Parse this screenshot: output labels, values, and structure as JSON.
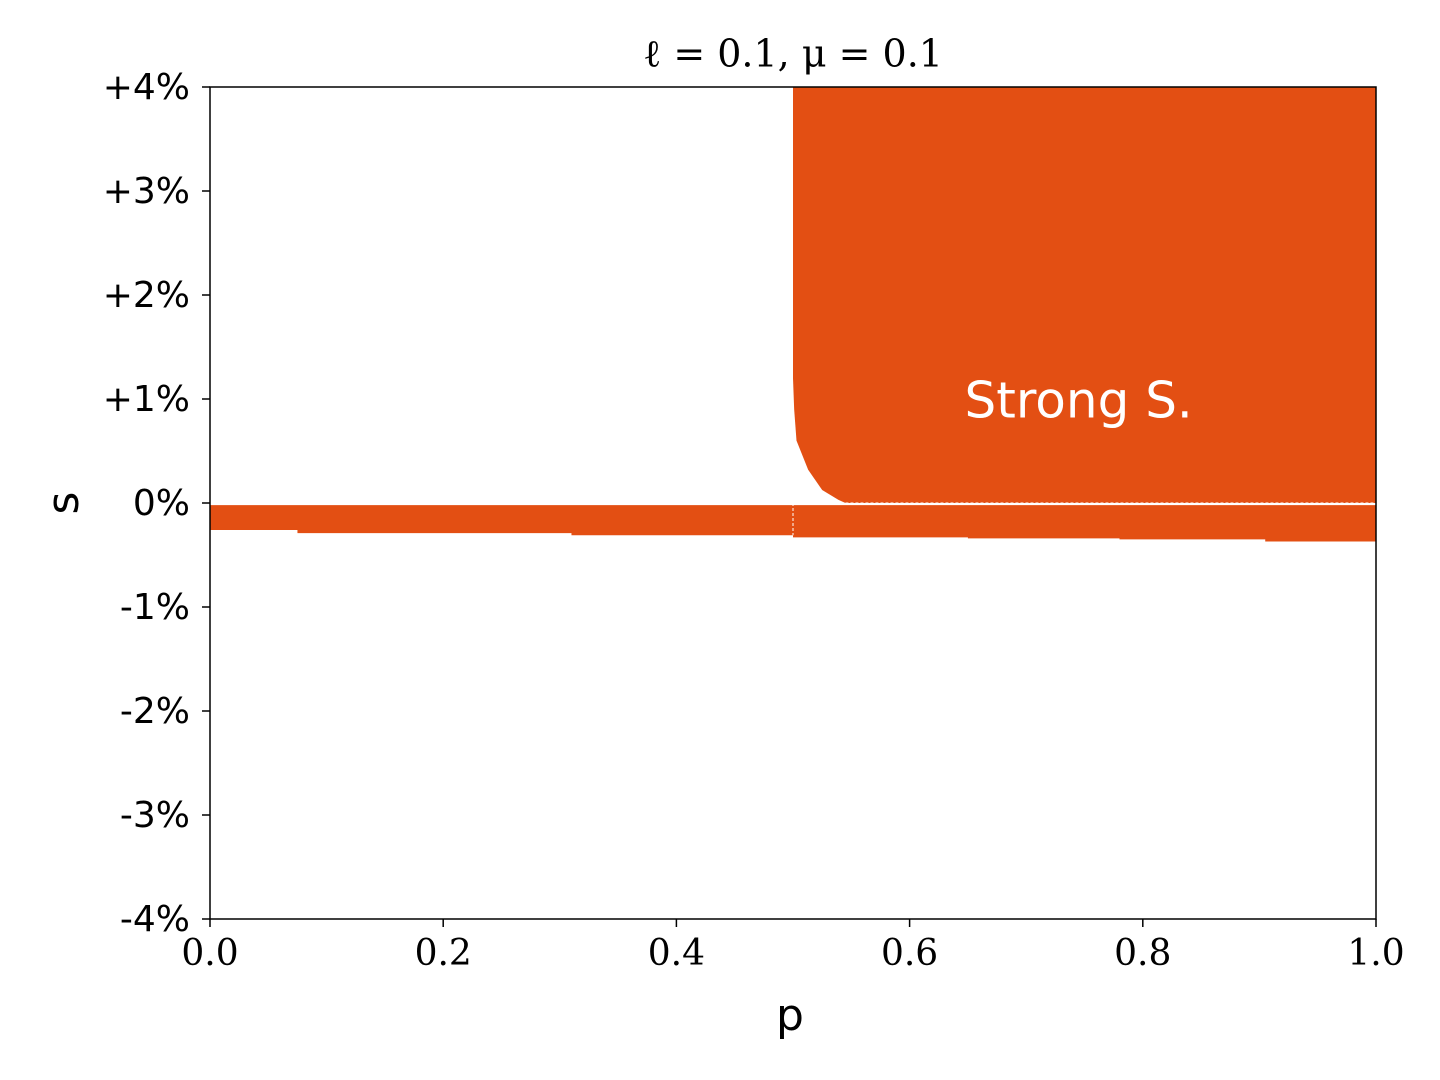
{
  "chart_data": {
    "type": "region",
    "title": "ℓ = 0.1, μ = 0.1",
    "xlabel": "p",
    "ylabel": "s",
    "xlim": [
      0,
      1
    ],
    "ylim": [
      -4,
      4
    ],
    "xticks": [
      {
        "value": 0,
        "label": "0.0"
      },
      {
        "value": 0.2,
        "label": "0.2"
      },
      {
        "value": 0.4,
        "label": "0.4"
      },
      {
        "value": 0.6,
        "label": "0.6"
      },
      {
        "value": 0.8,
        "label": "0.8"
      },
      {
        "value": 1,
        "label": "1.0"
      }
    ],
    "yticks": [
      {
        "value": -4,
        "label": "-4%"
      },
      {
        "value": -3,
        "label": "-3%"
      },
      {
        "value": -2,
        "label": "-2%"
      },
      {
        "value": -1,
        "label": "-1%"
      },
      {
        "value": 0,
        "label": "0%"
      },
      {
        "value": 1,
        "label": "+1%"
      },
      {
        "value": 2,
        "label": "+2%"
      },
      {
        "value": 3,
        "label": "+3%"
      },
      {
        "value": 4,
        "label": "+4%"
      }
    ],
    "color": "#e34f13",
    "regions": [
      {
        "x": [
          0.5,
          0.5,
          0.501,
          0.503,
          0.513,
          0.525,
          0.539,
          0.545,
          1,
          1
        ],
        "y": [
          4,
          1.2,
          0.9,
          0.6,
          0.32,
          0.125,
          0.03,
          0,
          0,
          4
        ]
      },
      {
        "x": [
          0,
          1,
          1,
          0.905,
          0.905,
          0.78,
          0.78,
          0.65,
          0.65,
          0.5,
          0.5,
          0.31,
          0.31,
          0.075,
          0.075,
          0
        ],
        "y": [
          -0.02,
          -0.02,
          -0.37,
          -0.37,
          -0.35,
          -0.35,
          -0.34,
          -0.34,
          -0.33,
          -0.33,
          -0.31,
          -0.31,
          -0.29,
          -0.29,
          -0.26,
          -0.26
        ]
      }
    ],
    "dashed_lines": [
      {
        "x": [
          0.5,
          0.5
        ],
        "y": [
          0,
          -0.31
        ]
      },
      {
        "x": [
          0.545,
          1
        ],
        "y": [
          0,
          0
        ]
      }
    ],
    "annotation": "Strong S."
  }
}
